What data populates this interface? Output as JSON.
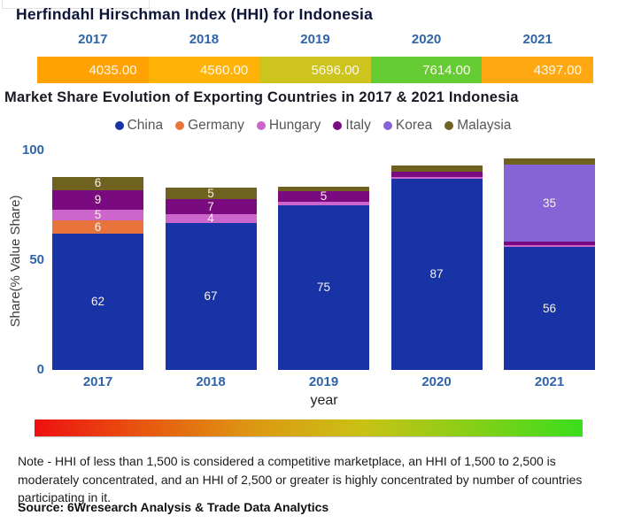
{
  "titles": {
    "hhi": "Herfindahl Hirschman Index (HHI) for Indonesia",
    "market": "Market Share Evolution of Exporting Countries in 2017 & 2021 Indonesia"
  },
  "footer": {
    "note": "Note - HHI of less than 1,500 is considered a competitive marketplace, an HHI of 1,500 to 2,500 is moderately concentrated, and an HHI of 2,500 or greater is highly concentrated by number of countries participating in it.",
    "source": "Source: 6Wresearch Analysis & Trade Data Analytics"
  },
  "chart_data": [
    {
      "type": "heatmap",
      "title": "Herfindahl Hirschman Index (HHI) for Indonesia",
      "categories": [
        "2017",
        "2018",
        "2019",
        "2020",
        "2021"
      ],
      "values": [
        4035.0,
        4560.0,
        5696.0,
        7614.0,
        4397.0
      ],
      "value_labels": [
        "4035.00",
        "4560.00",
        "5696.00",
        "7614.00",
        "4397.00"
      ],
      "cell_colors": [
        "#FFA202",
        "#FFB307",
        "#CDC41E",
        "#66CC33",
        "#FFA812"
      ],
      "text_color": "#FCF8EC",
      "scale_gradient": [
        "#EE1010",
        "#E8570F",
        "#DD9812",
        "#C9C215",
        "#86CF17",
        "#3BDD1D"
      ]
    },
    {
      "type": "bar",
      "stacked": true,
      "title": "Market Share Evolution of Exporting Countries in 2017 & 2021 Indonesia",
      "categories": [
        "2017",
        "2018",
        "2019",
        "2020",
        "2021"
      ],
      "xlabel": "year",
      "ylabel": "Share(% Value Share)",
      "ylim": [
        0,
        100
      ],
      "yticks": [
        0,
        50,
        100
      ],
      "legend_position": "top",
      "series": [
        {
          "name": "China",
          "color": "#1733A6",
          "values": [
            62,
            67,
            75,
            87,
            56
          ],
          "labels": [
            "62",
            "67",
            "75",
            "87",
            "56"
          ]
        },
        {
          "name": "Germany",
          "color": "#E8743B",
          "values": [
            6,
            0,
            0,
            0,
            0
          ],
          "labels": [
            "6",
            null,
            null,
            null,
            null
          ]
        },
        {
          "name": "Hungary",
          "color": "#CC66CC",
          "values": [
            5,
            4,
            1.5,
            1,
            1
          ],
          "labels": [
            "5",
            "4",
            null,
            null,
            null
          ]
        },
        {
          "name": "Italy",
          "color": "#7A0A80",
          "values": [
            9,
            7,
            5,
            2.5,
            1.5
          ],
          "labels": [
            "9",
            "7",
            "5",
            null,
            null
          ]
        },
        {
          "name": "Korea",
          "color": "#8565D6",
          "values": [
            0,
            0,
            0,
            0,
            35
          ],
          "labels": [
            null,
            null,
            null,
            null,
            "35"
          ]
        },
        {
          "name": "Malaysia",
          "color": "#6F6120",
          "values": [
            6,
            5,
            2,
            2.5,
            3
          ],
          "labels": [
            "6",
            "5",
            null,
            null,
            null
          ]
        }
      ]
    }
  ]
}
